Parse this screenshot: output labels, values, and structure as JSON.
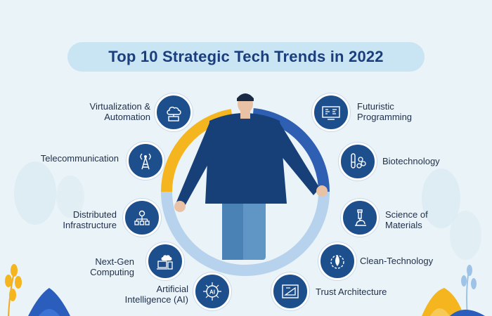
{
  "title": "Top 10 Strategic Tech Trends in 2022",
  "colors": {
    "accent": "#1d4f8c",
    "ring_blue": "#2f5fb3",
    "ring_yellow": "#f5b51f",
    "ring_light": "#a9c9e8",
    "title_bg": "#c9e4f3",
    "title_text": "#1a3e7d"
  },
  "left_trends": [
    {
      "label": "Virtualization &\nAutomation",
      "icon": "cloud-laptop-icon"
    },
    {
      "label": "Telecommunication",
      "icon": "antenna-tower-icon"
    },
    {
      "label": "Distributed\nInfrastructure",
      "icon": "network-nodes-icon"
    },
    {
      "label": "Next-Gen\nComputing",
      "icon": "cloud-devices-icon"
    },
    {
      "label": "Artificial\nIntelligence (AI)",
      "icon": "ai-chip-icon"
    }
  ],
  "right_trends": [
    {
      "label": "Futuristic\nProgramming",
      "icon": "code-monitor-icon"
    },
    {
      "label": "Biotechnology",
      "icon": "test-tubes-icon"
    },
    {
      "label": "Science of\nMaterials",
      "icon": "microscope-icon"
    },
    {
      "label": "Clean-Technology",
      "icon": "leaf-gear-icon"
    },
    {
      "label": "Trust Architecture",
      "icon": "blueprint-ruler-icon"
    }
  ]
}
